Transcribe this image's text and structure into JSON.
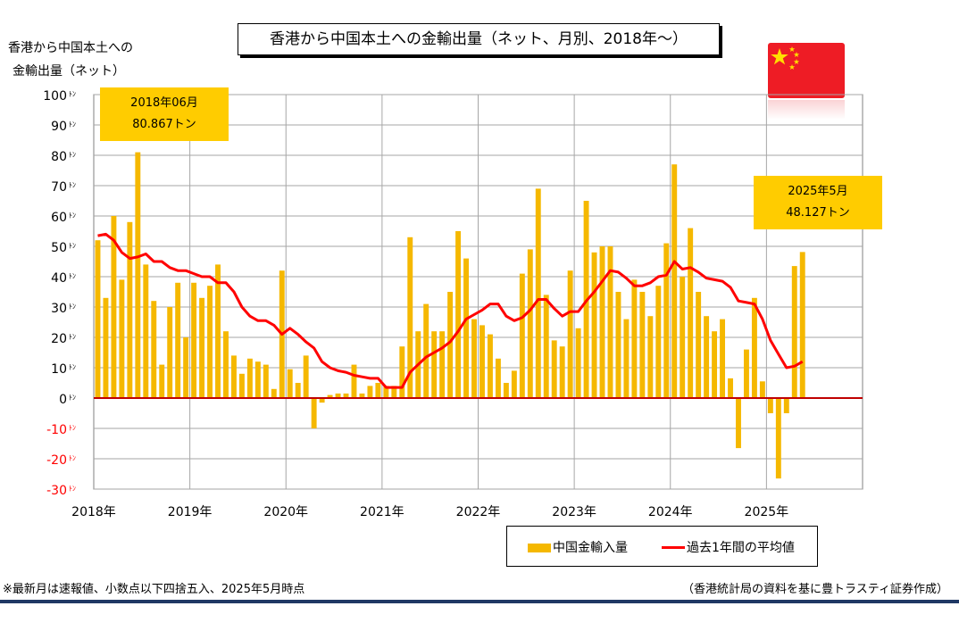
{
  "title": "香港から中国本土への金輸出量（ネット、月別、2018年～）",
  "y_label_line1": "香港から中国本土への",
  "y_label_line2": "金輸出量（ネット）",
  "callouts": [
    {
      "line1": "2018年06月",
      "line2": "80.867トン"
    },
    {
      "line1": "2025年5月",
      "line2": "48.127トン"
    }
  ],
  "legend": {
    "bar_label": "中国金輸入量",
    "line_label": "過去1年間の平均値"
  },
  "footnote": "※最新月は速報値、小数点以下四捨五入、2025年5月時点",
  "source": "（香港統計局の資料を基に豊トラスティ証券作成）",
  "colors": {
    "bar": "#f5b800",
    "line": "#ff0000",
    "negative_tick": "#ff0000",
    "zero_line": "#c00000"
  },
  "chart_data": {
    "type": "bar",
    "unit_suffix": "ﾄﾝ",
    "ylim": [
      -30,
      100
    ],
    "yticks": [
      -30,
      -20,
      -10,
      0,
      10,
      20,
      30,
      40,
      50,
      60,
      70,
      80,
      90,
      100
    ],
    "ytick_labels": [
      "-30",
      "-20",
      "-10",
      "0",
      "10",
      "20",
      "30",
      "40",
      "50",
      "60",
      "70",
      "80",
      "90",
      "100"
    ],
    "x_labels": [
      "2018年",
      "2019年",
      "2020年",
      "2021年",
      "2022年",
      "2023年",
      "2024年",
      "2025年"
    ],
    "grid": true,
    "series": [
      {
        "name": "中国金輸入量",
        "type": "bar",
        "values": [
          52,
          33,
          60,
          39,
          58,
          81,
          44,
          32,
          11,
          30,
          38,
          20,
          38,
          33,
          37,
          44,
          22,
          14,
          8,
          13,
          12,
          11,
          3,
          42,
          9.5,
          5,
          14,
          -10,
          -1.5,
          1,
          1.5,
          1.5,
          11,
          1.5,
          4,
          5,
          4,
          4,
          17,
          53,
          22,
          31,
          22,
          22,
          35,
          55,
          46,
          26,
          24,
          21,
          13,
          5,
          9,
          41,
          49,
          69,
          34,
          19,
          17,
          42,
          23,
          65,
          48,
          50,
          50,
          35,
          26,
          39,
          35,
          27,
          37,
          51,
          77,
          40,
          56,
          35,
          27,
          22,
          26,
          6.5,
          -16.5,
          16,
          33,
          5.5,
          -5,
          -26.5,
          -5,
          43.5,
          48.127
        ]
      },
      {
        "name": "過去1年間の平均値",
        "type": "line",
        "values": [
          53.5,
          54,
          52,
          48,
          46,
          46.5,
          47.5,
          45,
          45,
          43,
          42,
          42,
          41,
          40,
          40,
          38,
          38,
          35,
          30,
          27,
          25.5,
          25.5,
          24,
          21,
          23,
          21,
          18.5,
          16.5,
          12,
          10,
          9,
          8.5,
          7.5,
          7,
          6.5,
          6.5,
          3.5,
          3.5,
          3.5,
          8.5,
          11,
          13.5,
          15,
          16.5,
          18.5,
          22,
          26,
          27.5,
          29,
          31,
          31,
          27,
          25.5,
          26.5,
          29,
          32.5,
          32.5,
          29.5,
          27,
          28.5,
          28.5,
          32,
          35,
          38.5,
          42,
          41.5,
          39.5,
          37,
          37,
          38,
          40,
          40.5,
          45,
          42.5,
          43,
          41.5,
          39.5,
          39,
          38.5,
          36.5,
          32,
          31.5,
          31,
          26,
          19,
          14.5,
          10,
          10.5,
          12
        ]
      }
    ]
  }
}
